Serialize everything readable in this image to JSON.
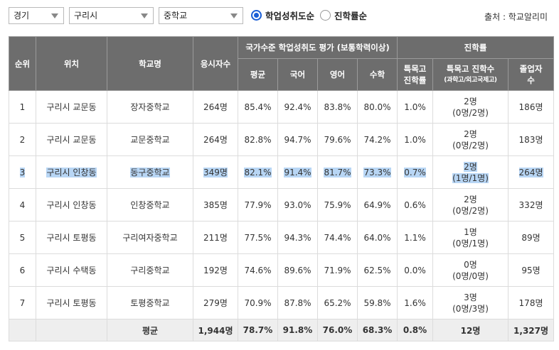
{
  "filters": {
    "province": "경기",
    "city": "구리시",
    "level": "중학교"
  },
  "radio": {
    "option1": "학업성취도순",
    "option2": "진학률순",
    "selected": "학업성취도순"
  },
  "source": "출처 : 학교알리미",
  "headers": {
    "rank": "순위",
    "location": "위치",
    "school": "학교명",
    "examinees": "응시자수",
    "achievement_group": "국가수준 학업성취도 평가 (보통학력이상)",
    "avg": "평균",
    "korean": "국어",
    "english": "영어",
    "math": "수학",
    "advancement_group": "진학률",
    "special_rate_1": "특목고",
    "special_rate_2": "진학률",
    "special_count_1": "특목고 진학수",
    "special_count_2": "(과학고/외고국제고)",
    "graduates_1": "졸업자",
    "graduates_2": "수"
  },
  "rows": [
    {
      "rank": "1",
      "location": "구리시 교문동",
      "school": "장자중학교",
      "examinees": "264명",
      "avg": "85.4%",
      "korean": "92.4%",
      "english": "83.8%",
      "math": "80.0%",
      "special_rate": "1.0%",
      "special_count": "2명",
      "special_detail": "(0명/2명)",
      "graduates": "186명"
    },
    {
      "rank": "2",
      "location": "구리시 교문동",
      "school": "교문중학교",
      "examinees": "264명",
      "avg": "82.8%",
      "korean": "94.7%",
      "english": "79.6%",
      "math": "74.2%",
      "special_rate": "1.0%",
      "special_count": "2명",
      "special_detail": "(0명/2명)",
      "graduates": "183명"
    },
    {
      "rank": "3",
      "location": "구리시 인창동",
      "school": "동구중학교",
      "examinees": "349명",
      "avg": "82.1%",
      "korean": "91.4%",
      "english": "81.7%",
      "math": "73.3%",
      "special_rate": "0.7%",
      "special_count": "2명",
      "special_detail": "(1명/1명)",
      "graduates": "264명"
    },
    {
      "rank": "4",
      "location": "구리시 인창동",
      "school": "인창중학교",
      "examinees": "385명",
      "avg": "77.9%",
      "korean": "93.0%",
      "english": "75.9%",
      "math": "64.9%",
      "special_rate": "0.6%",
      "special_count": "2명",
      "special_detail": "(0명/2명)",
      "graduates": "332명"
    },
    {
      "rank": "5",
      "location": "구리시 토평동",
      "school": "구리여자중학교",
      "examinees": "211명",
      "avg": "77.5%",
      "korean": "94.3%",
      "english": "74.4%",
      "math": "64.0%",
      "special_rate": "1.1%",
      "special_count": "1명",
      "special_detail": "(0명/1명)",
      "graduates": "89명"
    },
    {
      "rank": "6",
      "location": "구리시 수택동",
      "school": "구리중학교",
      "examinees": "192명",
      "avg": "74.6%",
      "korean": "89.6%",
      "english": "71.9%",
      "math": "62.5%",
      "special_rate": "0.0%",
      "special_count": "0명",
      "special_detail": "(0명/0명)",
      "graduates": "95명"
    },
    {
      "rank": "7",
      "location": "구리시 토평동",
      "school": "토평중학교",
      "examinees": "279명",
      "avg": "70.9%",
      "korean": "87.8%",
      "english": "65.2%",
      "math": "59.8%",
      "special_rate": "1.6%",
      "special_count": "3명",
      "special_detail": "(0명/3명)",
      "graduates": "178명"
    }
  ],
  "average": {
    "label": "평균",
    "examinees": "1,944명",
    "avg": "78.7%",
    "korean": "91.8%",
    "english": "76.0%",
    "math": "68.3%",
    "special_rate": "0.8%",
    "special_count": "12명",
    "graduates": "1,327명"
  },
  "colors": {
    "header_bg": "#6d6d6d",
    "highlight": "#b8d6f5",
    "radio_accent": "#1a5ed6",
    "average_bg": "#eeeeee"
  }
}
